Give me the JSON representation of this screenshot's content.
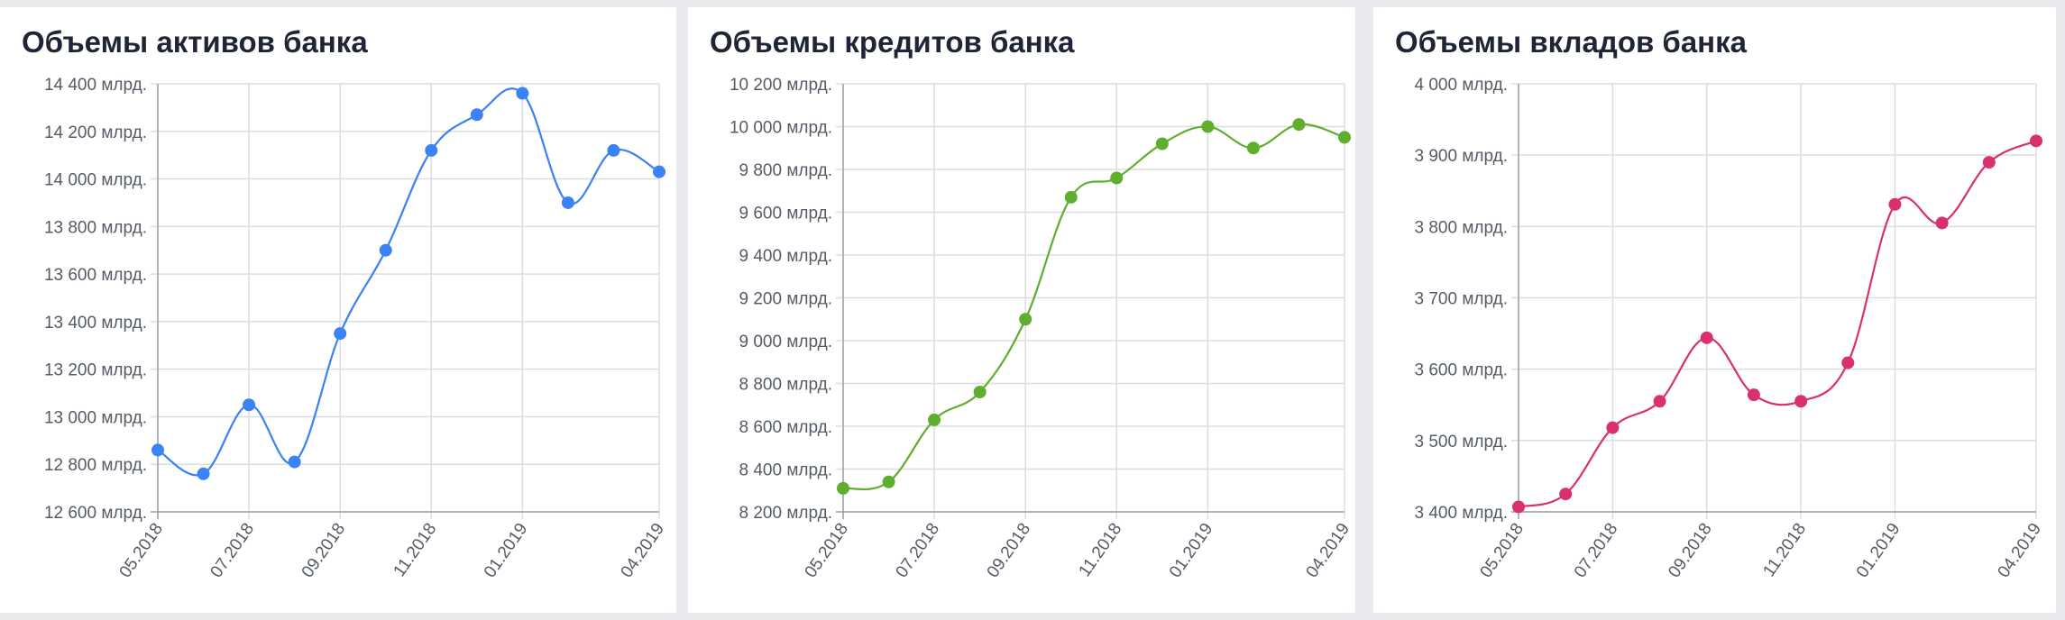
{
  "colors": {
    "assets": "#3b82f6",
    "loans": "#5fae2e",
    "deposits": "#d9306f"
  },
  "chart_data": [
    {
      "type": "line",
      "title": "Объемы активов банка",
      "color": "#3b82f6",
      "x": [
        "05.2018",
        "06.2018",
        "07.2018",
        "08.2018",
        "09.2018",
        "10.2018",
        "11.2018",
        "12.2018",
        "01.2019",
        "02.2019",
        "03.2019",
        "04.2019"
      ],
      "xtick_labels": [
        "05.2018",
        "",
        "07.2018",
        "",
        "09.2018",
        "",
        "11.2018",
        "",
        "01.2019",
        "",
        "",
        "04.2019"
      ],
      "values": [
        12860,
        12760,
        13050,
        12810,
        13350,
        13700,
        14120,
        14270,
        14360,
        13900,
        14120,
        14030
      ],
      "yticks": [
        12600,
        12800,
        13000,
        13200,
        13400,
        13600,
        13800,
        14000,
        14200,
        14400
      ],
      "ytick_labels": [
        "12 600 млрд.",
        "12 800 млрд.",
        "13 000 млрд.",
        "13 200 млрд.",
        "13 400 млрд.",
        "13 600 млрд.",
        "13 800 млрд.",
        "14 000 млрд.",
        "14 200 млрд.",
        "14 400 млрд."
      ],
      "ylim": [
        12600,
        14400
      ],
      "grid": true
    },
    {
      "type": "line",
      "title": "Объемы кредитов банка",
      "color": "#5fae2e",
      "x": [
        "05.2018",
        "06.2018",
        "07.2018",
        "08.2018",
        "09.2018",
        "10.2018",
        "11.2018",
        "12.2018",
        "01.2019",
        "02.2019",
        "03.2019",
        "04.2019"
      ],
      "xtick_labels": [
        "05.2018",
        "",
        "07.2018",
        "",
        "09.2018",
        "",
        "11.2018",
        "",
        "01.2019",
        "",
        "",
        "04.2019"
      ],
      "values": [
        8310,
        8340,
        8630,
        8760,
        9100,
        9670,
        9760,
        9920,
        10000,
        9900,
        10010,
        9950
      ],
      "yticks": [
        8200,
        8400,
        8600,
        8800,
        9000,
        9200,
        9400,
        9600,
        9800,
        10000,
        10200
      ],
      "ytick_labels": [
        "8 200 млрд.",
        "8 400 млрд.",
        "8 600 млрд.",
        "8 800 млрд.",
        "9 000 млрд.",
        "9 200 млрд.",
        "9 400 млрд.",
        "9 600 млрд.",
        "9 800 млрд.",
        "10 000 млрд.",
        "10 200 млрд."
      ],
      "ylim": [
        8200,
        10200
      ],
      "grid": true
    },
    {
      "type": "line",
      "title": "Объемы вкладов банка",
      "color": "#d9306f",
      "x": [
        "05.2018",
        "06.2018",
        "07.2018",
        "08.2018",
        "09.2018",
        "10.2018",
        "11.2018",
        "12.2018",
        "01.2019",
        "02.2019",
        "03.2019",
        "04.2019"
      ],
      "xtick_labels": [
        "05.2018",
        "",
        "07.2018",
        "",
        "09.2018",
        "",
        "11.2018",
        "",
        "01.2019",
        "",
        "",
        "04.2019"
      ],
      "values": [
        3407,
        3425,
        3518,
        3555,
        3644,
        3564,
        3555,
        3609,
        3831,
        3805,
        3890,
        3920
      ],
      "yticks": [
        3400,
        3500,
        3600,
        3700,
        3800,
        3900,
        4000
      ],
      "ytick_labels": [
        "3 400 млрд.",
        "3 500 млрд.",
        "3 600 млрд.",
        "3 700 млрд.",
        "3 800 млрд.",
        "3 900 млрд.",
        "4 000 млрд."
      ],
      "ylim": [
        3400,
        4000
      ],
      "grid": true
    }
  ]
}
